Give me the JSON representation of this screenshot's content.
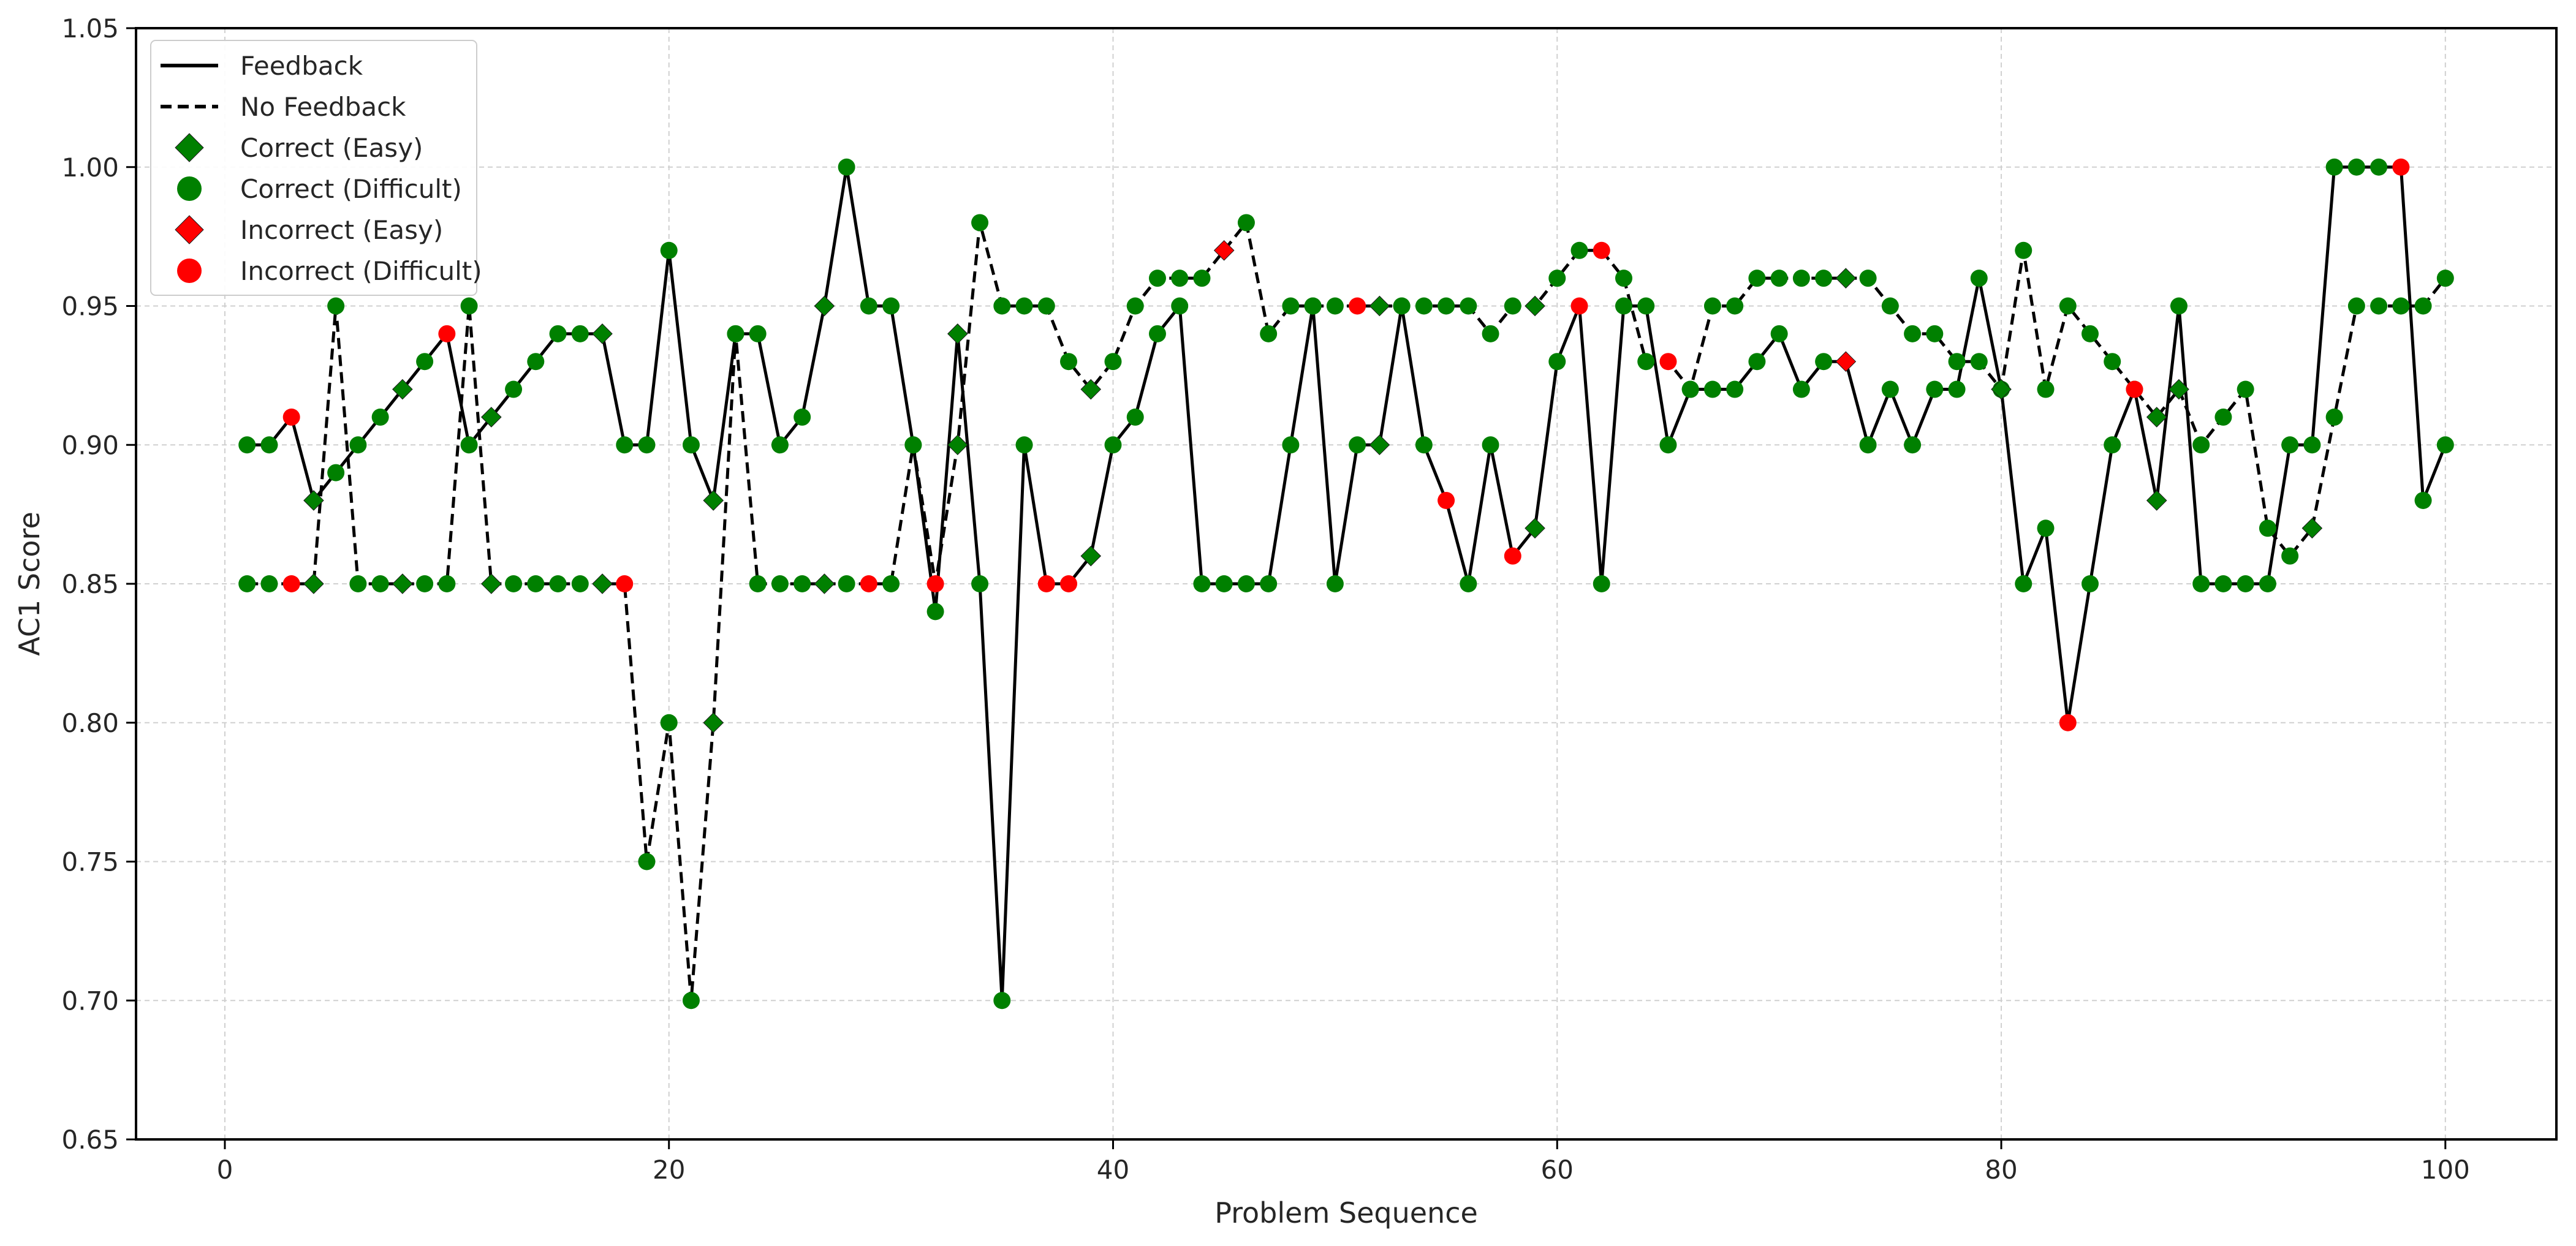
{
  "chart_data": {
    "type": "line",
    "title": "",
    "xlabel": "Problem Sequence",
    "ylabel": "AC1 Score",
    "xlim": [
      -4,
      105
    ],
    "ylim": [
      0.65,
      1.05
    ],
    "xticks": [
      0,
      20,
      40,
      60,
      80,
      100
    ],
    "yticks": [
      0.65,
      0.7,
      0.75,
      0.8,
      0.85,
      0.9,
      0.95,
      1.0,
      1.05
    ],
    "xtick_labels": [
      "0",
      "20",
      "40",
      "60",
      "80",
      "100"
    ],
    "ytick_labels": [
      "0.65",
      "0.70",
      "0.75",
      "0.80",
      "0.85",
      "0.90",
      "0.95",
      "1.00",
      "1.05"
    ],
    "grid": true,
    "legend_position": "top-left",
    "colors": {
      "correct": "#008000",
      "incorrect": "#ff0000",
      "line": "#000000"
    },
    "legend": [
      {
        "label": "Feedback",
        "kind": "line-solid"
      },
      {
        "label": "No Feedback",
        "kind": "line-dashed"
      },
      {
        "label": "Correct (Easy)",
        "kind": "diamond",
        "color": "#008000"
      },
      {
        "label": "Correct (Difficult)",
        "kind": "circle",
        "color": "#008000"
      },
      {
        "label": "Incorrect (Easy)",
        "kind": "diamond",
        "color": "#ff0000"
      },
      {
        "label": "Incorrect (Difficult)",
        "kind": "circle",
        "color": "#ff0000"
      }
    ],
    "x": [
      1,
      2,
      3,
      4,
      5,
      6,
      7,
      8,
      9,
      10,
      11,
      12,
      13,
      14,
      15,
      16,
      17,
      18,
      19,
      20,
      21,
      22,
      23,
      24,
      25,
      26,
      27,
      28,
      29,
      30,
      31,
      32,
      33,
      34,
      35,
      36,
      37,
      38,
      39,
      40,
      41,
      42,
      43,
      44,
      45,
      46,
      47,
      48,
      49,
      50,
      51,
      52,
      53,
      54,
      55,
      56,
      57,
      58,
      59,
      60,
      61,
      62,
      63,
      64,
      65,
      66,
      67,
      68,
      69,
      70,
      71,
      72,
      73,
      74,
      75,
      76,
      77,
      78,
      79,
      80,
      81,
      82,
      83,
      84,
      85,
      86,
      87,
      88,
      89,
      90,
      91,
      92,
      93,
      94,
      95,
      96,
      97,
      98,
      99,
      100
    ],
    "series": [
      {
        "name": "Feedback",
        "style": "solid",
        "values": [
          0.9,
          0.9,
          0.91,
          0.88,
          0.89,
          0.9,
          0.91,
          0.92,
          0.93,
          0.94,
          0.9,
          0.91,
          0.92,
          0.93,
          0.94,
          0.94,
          0.94,
          0.9,
          0.9,
          0.97,
          0.9,
          0.88,
          0.94,
          0.94,
          0.9,
          0.91,
          0.95,
          1.0,
          0.95,
          0.95,
          0.9,
          0.84,
          0.94,
          0.85,
          0.7,
          0.9,
          0.85,
          0.85,
          0.86,
          0.9,
          0.91,
          0.94,
          0.95,
          0.85,
          0.85,
          0.85,
          0.85,
          0.9,
          0.95,
          0.85,
          0.9,
          0.9,
          0.95,
          0.9,
          0.88,
          0.85,
          0.9,
          0.86,
          0.87,
          0.93,
          0.95,
          0.85,
          0.95,
          0.95,
          0.9,
          0.92,
          0.92,
          0.92,
          0.93,
          0.94,
          0.92,
          0.93,
          0.93,
          0.9,
          0.92,
          0.9,
          0.92,
          0.92,
          0.96,
          0.92,
          0.85,
          0.87,
          0.8,
          0.85,
          0.9,
          0.92,
          0.88,
          0.95,
          0.85,
          0.85,
          0.85,
          0.85,
          0.9,
          0.9,
          1.0,
          1.0,
          1.0,
          1.0,
          0.88,
          0.9
        ],
        "markers": [
          "CD",
          "CD",
          "ID",
          "CE",
          "CD",
          "CD",
          "CD",
          "CE",
          "CD",
          "ID",
          "CD",
          "CE",
          "CD",
          "CD",
          "CD",
          "CD",
          "CE",
          "CD",
          "CD",
          "CD",
          "CD",
          "CE",
          "CD",
          "CD",
          "CD",
          "CD",
          "CE",
          "CD",
          "CD",
          "CD",
          "CD",
          "CD",
          "CE",
          "CD",
          "CD",
          "CD",
          "ID",
          "ID",
          "CE",
          "CD",
          "CD",
          "CD",
          "CD",
          "CD",
          "CD",
          "CD",
          "CD",
          "CD",
          "CD",
          "CD",
          "CD",
          "CE",
          "CD",
          "CD",
          "ID",
          "CD",
          "CD",
          "ID",
          "CE",
          "CD",
          "ID",
          "CD",
          "CD",
          "CD",
          "CD",
          "CD",
          "CD",
          "CD",
          "CD",
          "CD",
          "CD",
          "CD",
          "IE",
          "CD",
          "CD",
          "CD",
          "CD",
          "CD",
          "CD",
          "CD",
          "CD",
          "CD",
          "ID",
          "CD",
          "CD",
          "CD",
          "CE",
          "CD",
          "CD",
          "CD",
          "CD",
          "CD",
          "CD",
          "CD",
          "CD",
          "CD",
          "CD",
          "ID",
          "CD",
          "CD"
        ]
      },
      {
        "name": "No Feedback",
        "style": "dashed",
        "values": [
          0.85,
          0.85,
          0.85,
          0.85,
          0.95,
          0.85,
          0.85,
          0.85,
          0.85,
          0.85,
          0.95,
          0.85,
          0.85,
          0.85,
          0.85,
          0.85,
          0.85,
          0.85,
          0.75,
          0.8,
          0.7,
          0.8,
          0.94,
          0.85,
          0.85,
          0.85,
          0.85,
          0.85,
          0.85,
          0.85,
          0.9,
          0.85,
          0.9,
          0.98,
          0.95,
          0.95,
          0.95,
          0.93,
          0.92,
          0.93,
          0.95,
          0.96,
          0.96,
          0.96,
          0.97,
          0.98,
          0.94,
          0.95,
          0.95,
          0.95,
          0.95,
          0.95,
          0.95,
          0.95,
          0.95,
          0.95,
          0.94,
          0.95,
          0.95,
          0.96,
          0.97,
          0.97,
          0.96,
          0.93,
          0.93,
          0.92,
          0.95,
          0.95,
          0.96,
          0.96,
          0.96,
          0.96,
          0.96,
          0.96,
          0.95,
          0.94,
          0.94,
          0.93,
          0.93,
          0.92,
          0.97,
          0.92,
          0.95,
          0.94,
          0.93,
          0.92,
          0.91,
          0.92,
          0.9,
          0.91,
          0.92,
          0.87,
          0.86,
          0.87,
          0.91,
          0.95,
          0.95,
          0.95,
          0.95,
          0.96
        ],
        "markers": [
          "CD",
          "CD",
          "ID",
          "CE",
          "CD",
          "CD",
          "CD",
          "CE",
          "CD",
          "CD",
          "CD",
          "CE",
          "CD",
          "CD",
          "CD",
          "CD",
          "CE",
          "ID",
          "CD",
          "CD",
          "CD",
          "CE",
          "CD",
          "CD",
          "CD",
          "CD",
          "CE",
          "CD",
          "ID",
          "CD",
          "CD",
          "ID",
          "CE",
          "CD",
          "CD",
          "CD",
          "CD",
          "CD",
          "CE",
          "CD",
          "CD",
          "CD",
          "CD",
          "CD",
          "IE",
          "CD",
          "CD",
          "CD",
          "CD",
          "CD",
          "ID",
          "CE",
          "CD",
          "CD",
          "CD",
          "CD",
          "CD",
          "CD",
          "CE",
          "CD",
          "CD",
          "ID",
          "CD",
          "CD",
          "ID",
          "CD",
          "CD",
          "CD",
          "CD",
          "CD",
          "CD",
          "CD",
          "CE",
          "CD",
          "CD",
          "CD",
          "CD",
          "CD",
          "CD",
          "CE",
          "CD",
          "CD",
          "CD",
          "CD",
          "CD",
          "ID",
          "CE",
          "CE",
          "CD",
          "CD",
          "CD",
          "CD",
          "CD",
          "CE",
          "CD",
          "CD",
          "CD",
          "CD",
          "CD",
          "CD"
        ]
      }
    ]
  }
}
